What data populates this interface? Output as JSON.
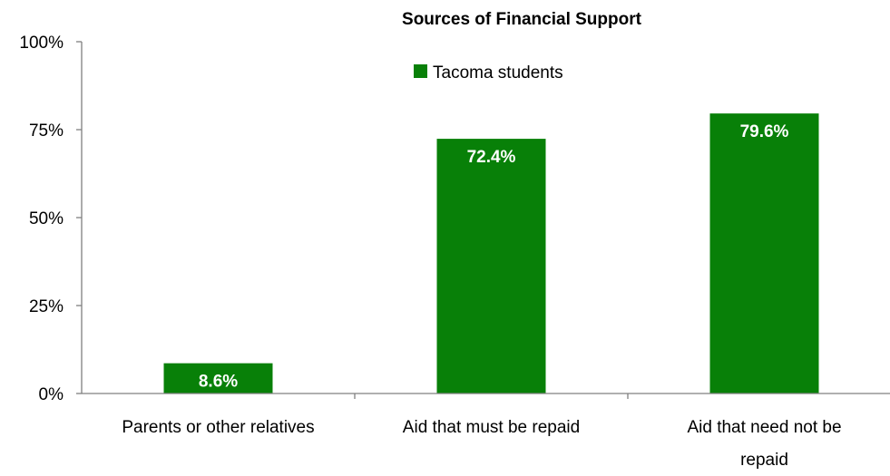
{
  "chart_data": {
    "type": "bar",
    "title": "Sources of Financial Support",
    "categories": [
      [
        "Parents or other relatives"
      ],
      [
        "Aid that must be repaid"
      ],
      [
        "Aid that need not be",
        "repaid"
      ]
    ],
    "series": [
      {
        "name": "Tacoma students",
        "values": [
          8.6,
          72.4,
          79.6
        ],
        "value_labels": [
          "8.6%",
          "72.4%",
          "79.6%"
        ],
        "color": "#088008"
      }
    ],
    "y_ticks": [
      "0%",
      "25%",
      "50%",
      "75%",
      "100%"
    ],
    "ylim": [
      0,
      100
    ],
    "grid": false,
    "legend_position": "top-center",
    "axis_color": "#808080"
  }
}
